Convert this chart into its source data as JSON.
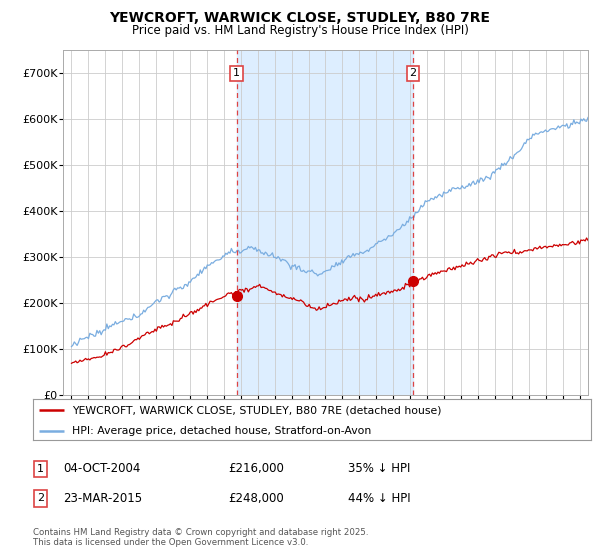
{
  "title": "YEWCROFT, WARWICK CLOSE, STUDLEY, B80 7RE",
  "subtitle": "Price paid vs. HM Land Registry's House Price Index (HPI)",
  "legend_line1": "YEWCROFT, WARWICK CLOSE, STUDLEY, B80 7RE (detached house)",
  "legend_line2": "HPI: Average price, detached house, Stratford-on-Avon",
  "footnote": "Contains HM Land Registry data © Crown copyright and database right 2025.\nThis data is licensed under the Open Government Licence v3.0.",
  "sale1_date": "04-OCT-2004",
  "sale1_price": "£216,000",
  "sale1_hpi": "35% ↓ HPI",
  "sale2_date": "23-MAR-2015",
  "sale2_price": "£248,000",
  "sale2_hpi": "44% ↓ HPI",
  "marker1_label": "1",
  "marker2_label": "2",
  "red_color": "#cc0000",
  "blue_color": "#7aade0",
  "shade_color": "#ddeeff",
  "dashed_color": "#dd4444",
  "background_color": "#ffffff",
  "grid_color": "#cccccc",
  "ylim": [
    0,
    750000
  ],
  "yticks": [
    0,
    100000,
    200000,
    300000,
    400000,
    500000,
    600000,
    700000
  ],
  "ytick_labels": [
    "£0",
    "£100K",
    "£200K",
    "£300K",
    "£400K",
    "£500K",
    "£600K",
    "£700K"
  ],
  "sale1_year": 2004.75,
  "sale2_year": 2015.17,
  "sale1_price_val": 216000,
  "sale2_price_val": 248000,
  "xmin": 1994.5,
  "xmax": 2025.5
}
